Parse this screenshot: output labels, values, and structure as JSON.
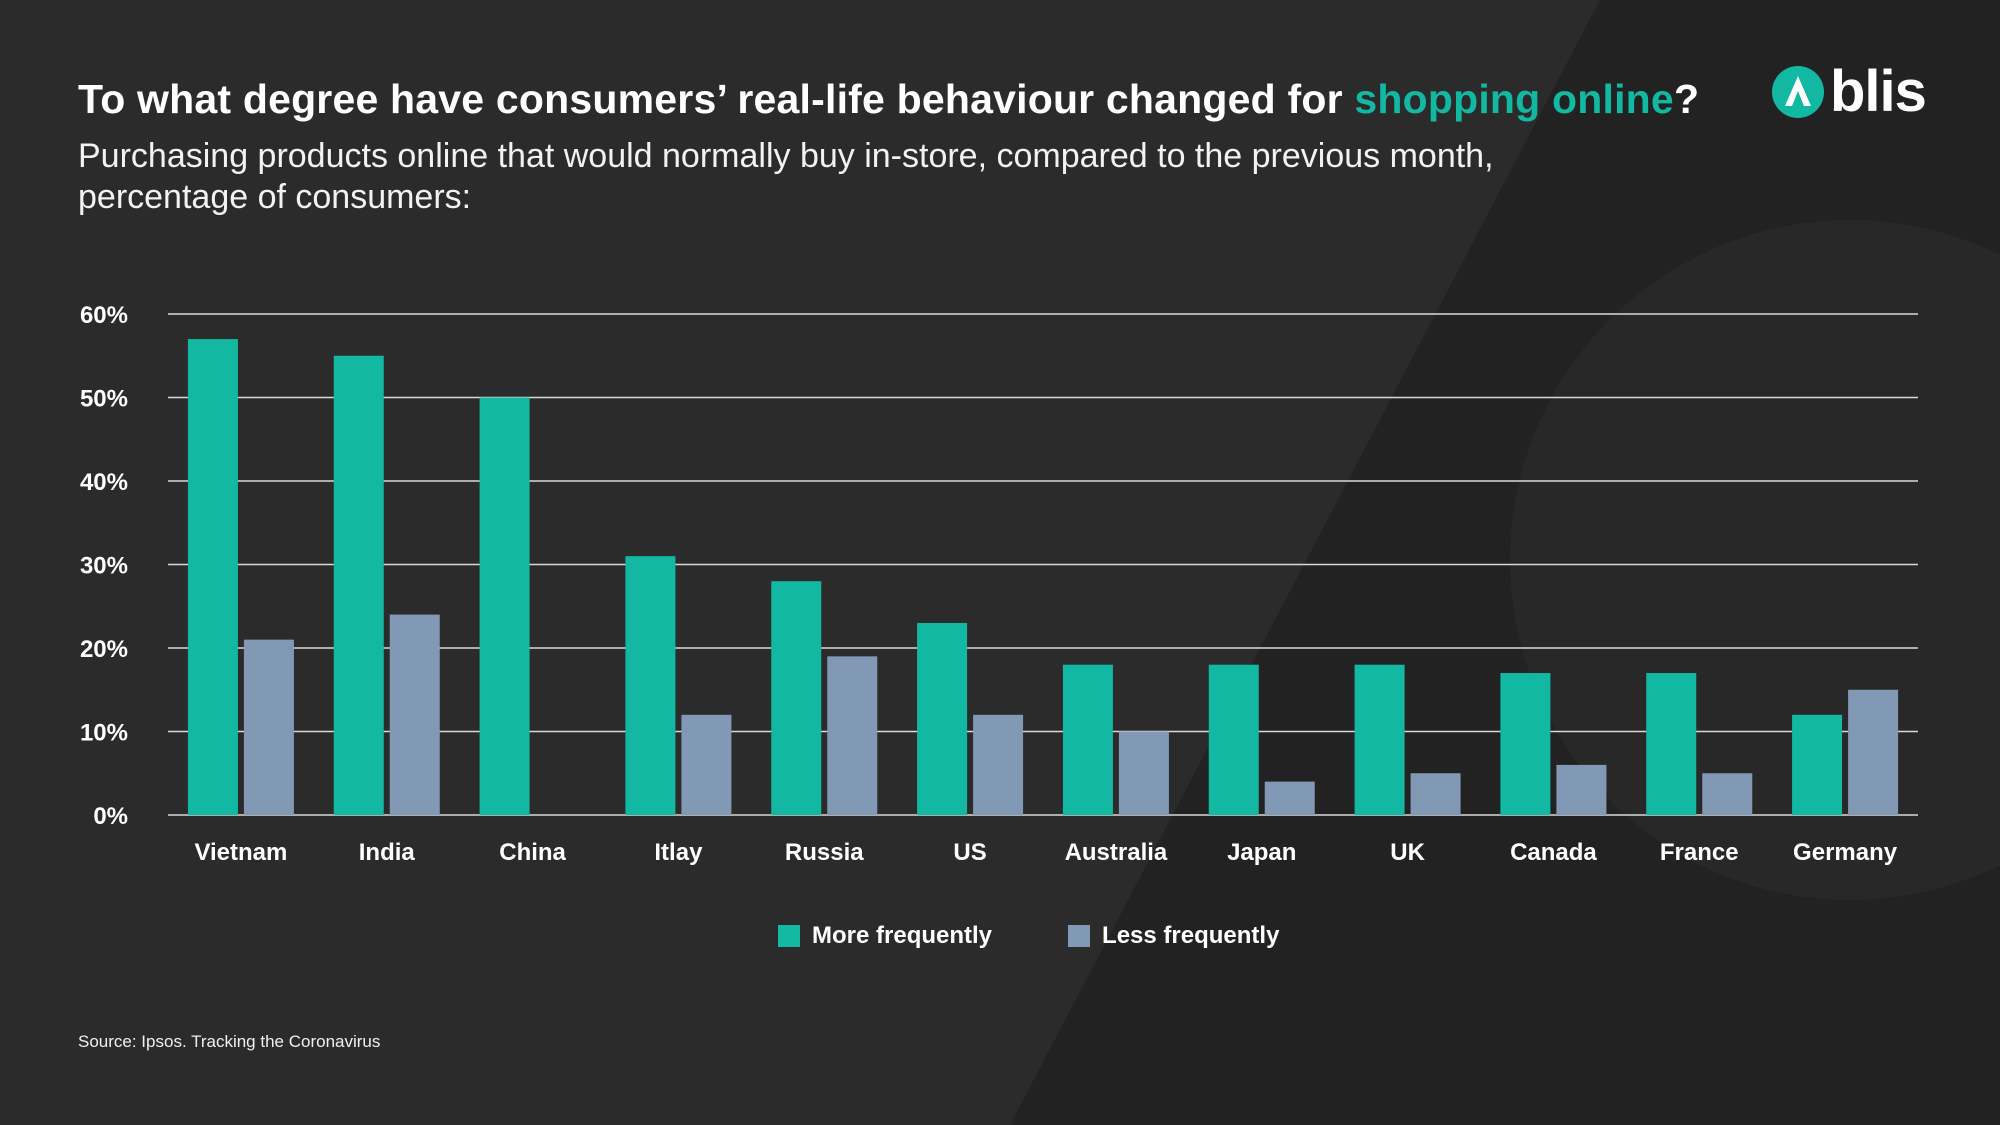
{
  "header": {
    "title_prefix": "To what degree have consumers’ real-life behaviour changed for ",
    "title_highlight": "shopping online",
    "title_suffix": "?",
    "subtitle": "Purchasing products online that would normally buy in-store, compared to the previous month, percentage of consumers:"
  },
  "logo": {
    "text": "blis",
    "icon": "blis-logo-icon"
  },
  "colors": {
    "accent": "#12b8a1",
    "secondary": "#8299b5",
    "background": "#2b2b2b"
  },
  "legend": {
    "more": "More frequently",
    "less": "Less frequently"
  },
  "source": "Source: Ipsos. Tracking the Coronavirus",
  "chart_data": {
    "type": "bar",
    "categories": [
      "Vietnam",
      "India",
      "China",
      "Itlay",
      "Russia",
      "US",
      "Australia",
      "Japan",
      "UK",
      "Canada",
      "France",
      "Germany"
    ],
    "series": [
      {
        "name": "More frequently",
        "color": "#12b8a1",
        "values": [
          57,
          55,
          50,
          31,
          28,
          23,
          18,
          18,
          18,
          17,
          17,
          12
        ]
      },
      {
        "name": "Less frequently",
        "color": "#8299b5",
        "values": [
          21,
          24,
          0,
          12,
          19,
          12,
          10,
          4,
          5,
          6,
          5,
          15
        ]
      }
    ],
    "yticks": [
      "0%",
      "10%",
      "20%",
      "30%",
      "40%",
      "50%",
      "60%"
    ],
    "ylim": [
      0,
      60
    ],
    "grid": true,
    "legend_position": "bottom"
  }
}
